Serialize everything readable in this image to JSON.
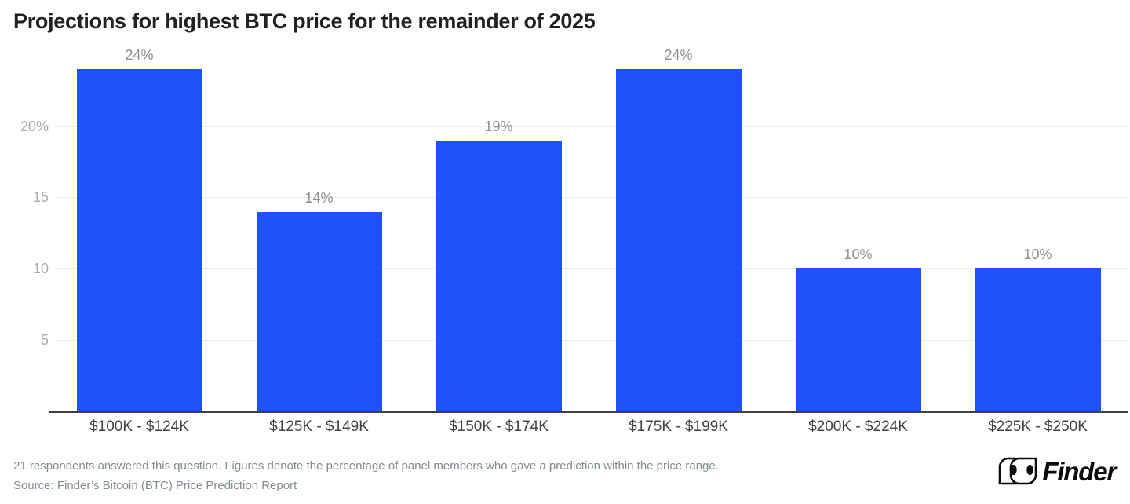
{
  "chart_data": {
    "type": "bar",
    "title": "Projections for highest BTC price for the remainder of 2025",
    "categories": [
      "$100K - $124K",
      "$125K - $149K",
      "$150K - $174K",
      "$175K - $199K",
      "$200K - $224K",
      "$225K - $250K"
    ],
    "values": [
      24,
      14,
      19,
      24,
      10,
      10
    ],
    "value_labels": [
      "24%",
      "14%",
      "19%",
      "24%",
      "10%",
      "10%"
    ],
    "xlabel": "",
    "ylabel": "",
    "ylim": [
      0,
      24
    ],
    "y_ticks": [
      {
        "value": 5,
        "label": "5"
      },
      {
        "value": 10,
        "label": "10"
      },
      {
        "value": 15,
        "label": "15"
      },
      {
        "value": 20,
        "label": "20%"
      }
    ],
    "grid": true,
    "legend": "none",
    "bar_color": "#1F52FA"
  },
  "footer": {
    "note": "21 respondents answered this question. Figures denote the percentage of panel members who gave a prediction within the price range.",
    "source": "Source: Finder’s Bitcoin (BTC) Price Prediction Report"
  },
  "logo": {
    "text": "Finder",
    "icon": "finder-goggles-icon"
  },
  "colors": {
    "bar": "#1F52FA",
    "title": "#202124",
    "value_label": "#8d9196",
    "y_tick": "#a8acb1",
    "x_label": "#3f4347",
    "gridline": "#ececec",
    "axis_line": "#3c3f43",
    "footer_text": "#828a91",
    "logo": "#0b0c0d"
  }
}
